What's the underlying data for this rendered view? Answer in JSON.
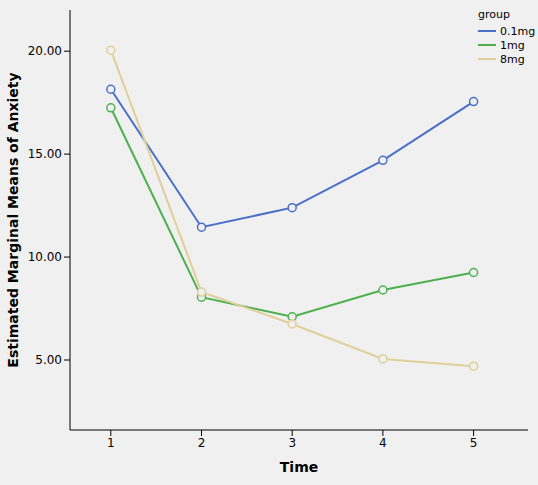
{
  "chart_data": {
    "type": "line",
    "x_label": "Time",
    "y_label": "Estimated Marginal Means of Anxiety",
    "legend_title": "group",
    "x": [
      1,
      2,
      3,
      4,
      5
    ],
    "series": [
      {
        "name": "0.1mg",
        "color": "#4a6fc9",
        "values": [
          18.15,
          11.45,
          12.4,
          14.7,
          17.55
        ],
        "marker": "circle",
        "line_style": "solid"
      },
      {
        "name": "1mg",
        "color": "#4cb04f",
        "values": [
          17.25,
          8.05,
          7.1,
          8.4,
          9.25
        ],
        "marker": "circle",
        "line_style": "solid"
      },
      {
        "name": "8mg",
        "color": "#e0cf98",
        "values": [
          20.05,
          8.3,
          6.75,
          5.05,
          4.7
        ],
        "marker": "circle",
        "line_style": "solid"
      }
    ],
    "xlim": [
      0.55,
      5.6
    ],
    "xticks": [
      1,
      2,
      3,
      4,
      5
    ],
    "ylim": [
      1.6,
      22
    ],
    "yticks": [
      {
        "value": 5,
        "label": "5.00"
      },
      {
        "value": 10,
        "label": "10.00"
      },
      {
        "value": 15,
        "label": "15.00"
      },
      {
        "value": 20,
        "label": "20.00"
      }
    ],
    "grid": false,
    "legend": "top-right"
  }
}
